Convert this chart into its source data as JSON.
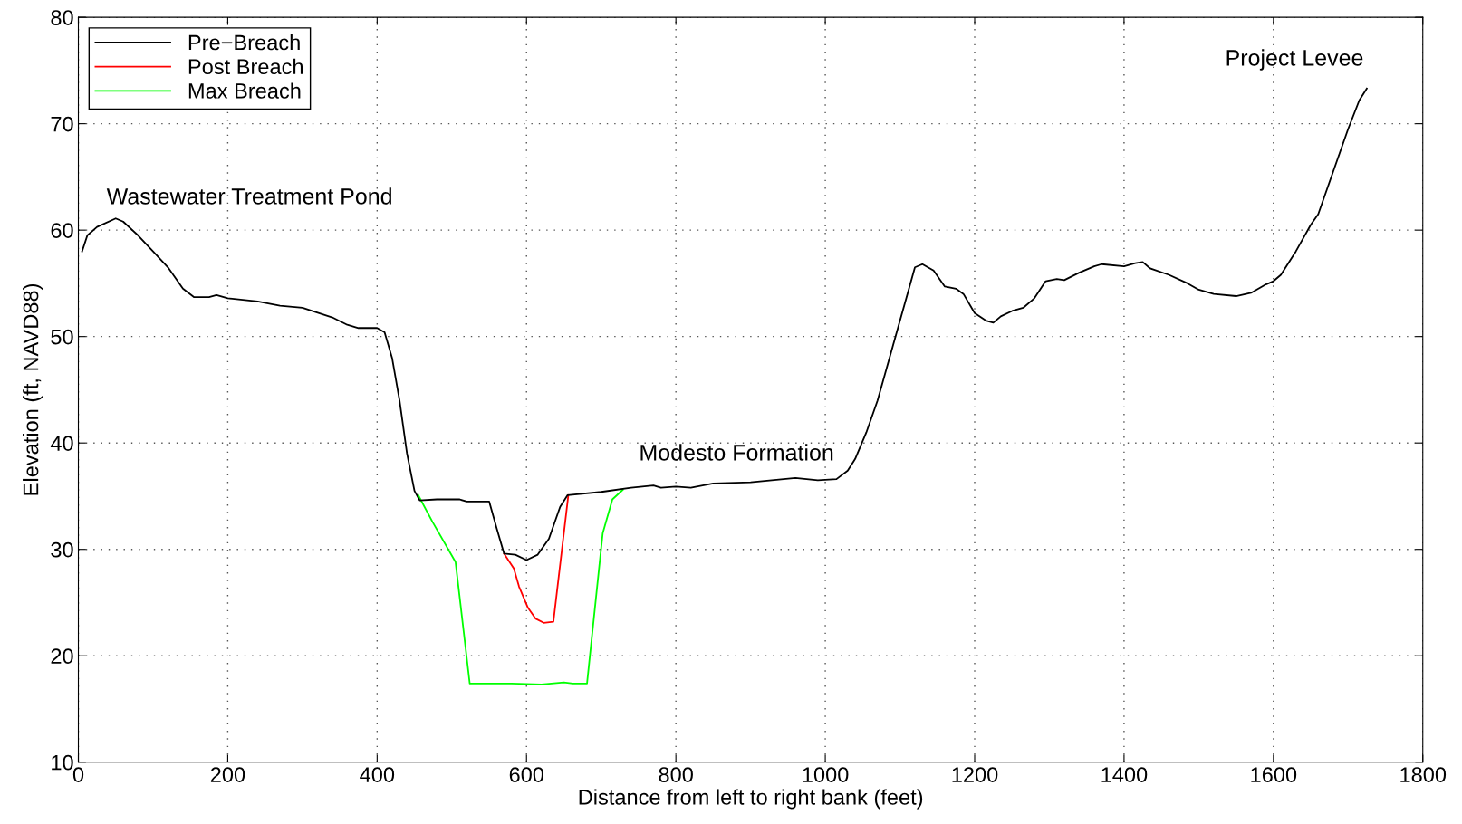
{
  "chart_data": {
    "type": "line",
    "xlabel": "Distance from left to right bank (feet)",
    "ylabel": "Elevation (ft, NAVD88)",
    "xlim": [
      0,
      1800
    ],
    "xticks": [
      0,
      200,
      400,
      600,
      800,
      1000,
      1200,
      1400,
      1600,
      1800
    ],
    "ylim": [
      10,
      80
    ],
    "yticks": [
      10,
      20,
      30,
      40,
      50,
      60,
      70,
      80
    ],
    "grid": true,
    "legend": "top left",
    "line_style": "solid",
    "marker": "none",
    "annotations": [
      "Wastewater Treatment Pond",
      "Modesto Formation",
      "Project Levee"
    ],
    "series": [
      {
        "name": "Pre−Breach",
        "color": "#000000",
        "x": [
          5,
          12,
          25,
          50,
          60,
          80,
          100,
          120,
          140,
          155,
          175,
          185,
          200,
          240,
          270,
          300,
          340,
          360,
          375,
          400,
          410,
          420,
          430,
          440,
          450,
          457,
          480,
          510,
          520,
          550,
          560,
          570,
          585,
          600,
          615,
          630,
          645,
          655,
          700,
          740,
          770,
          780,
          800,
          820,
          850,
          900,
          960,
          990,
          1015,
          1030,
          1040,
          1055,
          1070,
          1090,
          1110,
          1120,
          1130,
          1145,
          1160,
          1175,
          1185,
          1200,
          1215,
          1225,
          1235,
          1250,
          1265,
          1280,
          1295,
          1310,
          1320,
          1340,
          1360,
          1370,
          1400,
          1415,
          1425,
          1435,
          1460,
          1485,
          1500,
          1520,
          1550,
          1570,
          1590,
          1600,
          1610,
          1630,
          1650,
          1660,
          1680,
          1700,
          1715,
          1725
        ],
        "values": [
          58,
          59.5,
          60.3,
          61.1,
          60.8,
          59.5,
          58,
          56.5,
          54.5,
          53.7,
          53.7,
          53.9,
          53.6,
          53.3,
          52.9,
          52.7,
          51.8,
          51.1,
          50.8,
          50.8,
          50.4,
          48,
          44,
          39,
          35.5,
          34.6,
          34.7,
          34.7,
          34.5,
          34.5,
          32,
          29.6,
          29.5,
          29,
          29.5,
          31,
          34,
          35.1,
          35.4,
          35.8,
          36,
          35.8,
          35.9,
          35.8,
          36.2,
          36.3,
          36.7,
          36.5,
          36.6,
          37.4,
          38.5,
          41,
          44,
          49,
          54,
          56.5,
          56.8,
          56.2,
          54.7,
          54.5,
          54,
          52.2,
          51.5,
          51.3,
          51.9,
          52.4,
          52.7,
          53.6,
          55.2,
          55.4,
          55.3,
          56,
          56.6,
          56.8,
          56.6,
          56.9,
          57,
          56.4,
          55.8,
          55,
          54.4,
          54,
          53.8,
          54.1,
          54.9,
          55.2,
          55.8,
          58,
          60.5,
          61.5,
          65.5,
          69.5,
          72.2,
          73.3
        ]
      },
      {
        "name": "Post Breach",
        "color": "#ff0000",
        "x": [
          570,
          583,
          590,
          602,
          612,
          623,
          636,
          656
        ],
        "values": [
          29.6,
          28.2,
          26.5,
          24.5,
          23.5,
          23.1,
          23.2,
          35.1
        ]
      },
      {
        "name": "Max Breach",
        "color": "#00ff00",
        "x": [
          455,
          474,
          505,
          524,
          580,
          620,
          650,
          662,
          681,
          702,
          715,
          729
        ],
        "values": [
          35.1,
          32.6,
          28.8,
          17.4,
          17.4,
          17.3,
          17.5,
          17.4,
          17.4,
          31.5,
          34.7,
          35.6
        ]
      }
    ]
  }
}
